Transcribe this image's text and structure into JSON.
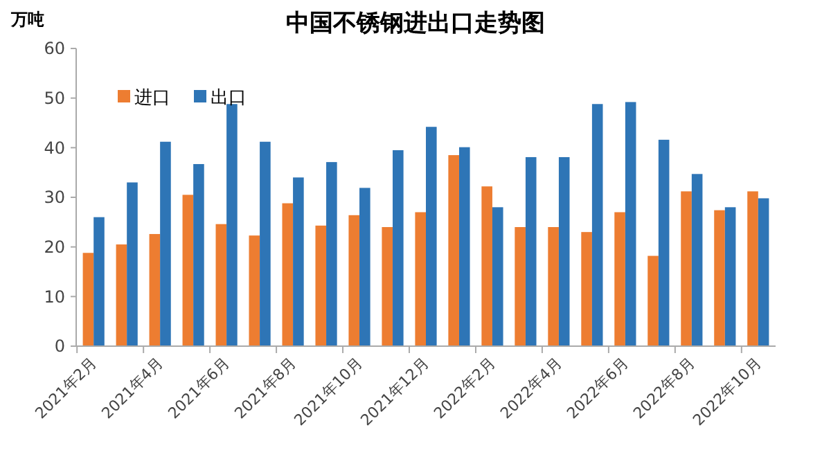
{
  "chart_data": {
    "type": "bar",
    "title": "中国不锈钢进出口走势图",
    "ylabel": "万吨",
    "categories": [
      "2021年2月",
      null,
      "2021年4月",
      null,
      "2021年6月",
      null,
      "2021年8月",
      null,
      "2021年10月",
      null,
      "2021年12月",
      null,
      "2022年2月",
      null,
      "2022年4月",
      null,
      "2022年6月",
      null,
      "2022年8月",
      null,
      "2022年10月"
    ],
    "series": [
      {
        "name": "进口",
        "color": "#ed7d31",
        "values": [
          18.8,
          20.5,
          22.6,
          30.5,
          24.6,
          22.3,
          28.8,
          24.3,
          26.4,
          24,
          27,
          38.5,
          32.2,
          24,
          24,
          23,
          27,
          18.2,
          31.2,
          27.4,
          31.2
        ]
      },
      {
        "name": "出口",
        "color": "#2e75b6",
        "values": [
          26,
          33,
          41.2,
          36.7,
          48.8,
          41.2,
          34,
          37.1,
          31.9,
          39.5,
          44.2,
          40.1,
          28,
          38.1,
          38.1,
          48.8,
          49.2,
          41.6,
          34.7,
          28,
          29.8
        ]
      }
    ],
    "ylim": [
      0,
      60
    ],
    "yticks": [
      0,
      10,
      20,
      30,
      40,
      50,
      60
    ],
    "legend": "top left"
  }
}
